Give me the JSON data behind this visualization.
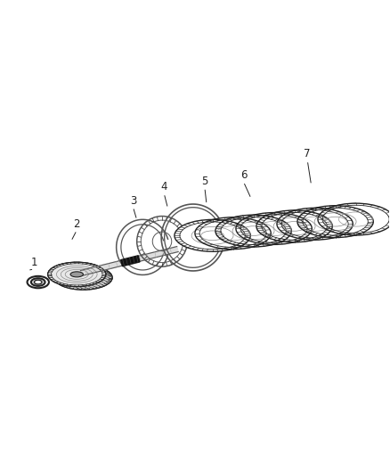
{
  "bg_color": "#ffffff",
  "line_color": "#555555",
  "dark_color": "#222222",
  "figsize": [
    4.38,
    5.33
  ],
  "dpi": 100,
  "iso_skew": 0.38,
  "label_positions": {
    "1": [
      0.085,
      0.435,
      0.068,
      0.415
    ],
    "2": [
      0.195,
      0.535,
      0.18,
      0.49
    ],
    "3": [
      0.34,
      0.595,
      0.35,
      0.545
    ],
    "4": [
      0.42,
      0.63,
      0.43,
      0.575
    ],
    "5": [
      0.525,
      0.645,
      0.53,
      0.585
    ],
    "6": [
      0.625,
      0.66,
      0.645,
      0.6
    ],
    "7": [
      0.79,
      0.715,
      0.8,
      0.635
    ]
  }
}
